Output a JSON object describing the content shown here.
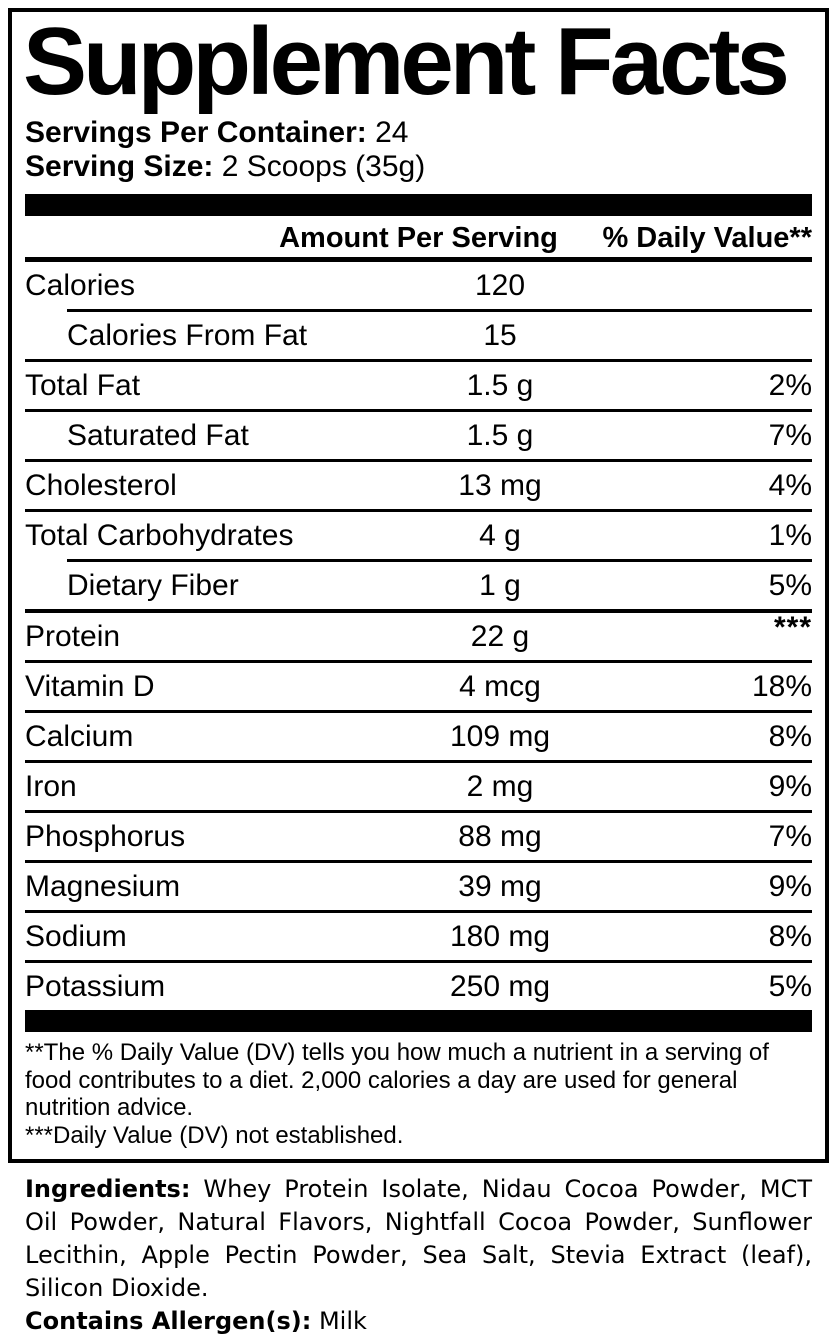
{
  "title": "Supplement Facts",
  "servings": {
    "label": "Servings Per Container:",
    "value": "24"
  },
  "serving_size": {
    "label": "Serving Size:",
    "value": "2 Scoops (35g)"
  },
  "table": {
    "col_amount": "Amount Per Serving",
    "col_dv": "% Daily Value**",
    "rows": [
      {
        "label": "Calories",
        "amount": "120",
        "dv": "",
        "indent": false,
        "divider": "none"
      },
      {
        "label": "Calories From Fat",
        "amount": "15",
        "dv": "",
        "indent": true,
        "divider": "indent"
      },
      {
        "label": "Total Fat",
        "amount": "1.5 g",
        "dv": "2%",
        "indent": false,
        "divider": "full"
      },
      {
        "label": "Saturated Fat",
        "amount": "1.5 g",
        "dv": "7%",
        "indent": true,
        "divider": "full"
      },
      {
        "label": "Cholesterol",
        "amount": "13 mg",
        "dv": "4%",
        "indent": false,
        "divider": "full"
      },
      {
        "label": "Total Carbohydrates",
        "amount": "4 g",
        "dv": "1%",
        "indent": false,
        "divider": "full"
      },
      {
        "label": "Dietary Fiber",
        "amount": "1 g",
        "dv": "5%",
        "indent": true,
        "divider": "indent"
      },
      {
        "label": "Protein",
        "amount": "22 g",
        "dv": "***",
        "indent": false,
        "divider": "medium",
        "dv_super": true
      },
      {
        "label": "Vitamin D",
        "amount": "4 mcg",
        "dv": "18%",
        "indent": false,
        "divider": "full"
      },
      {
        "label": "Calcium",
        "amount": "109 mg",
        "dv": "8%",
        "indent": false,
        "divider": "full"
      },
      {
        "label": "Iron",
        "amount": "2 mg",
        "dv": "9%",
        "indent": false,
        "divider": "full"
      },
      {
        "label": "Phosphorus",
        "amount": "88 mg",
        "dv": "7%",
        "indent": false,
        "divider": "full"
      },
      {
        "label": "Magnesium",
        "amount": "39 mg",
        "dv": "9%",
        "indent": false,
        "divider": "full"
      },
      {
        "label": "Sodium",
        "amount": "180 mg",
        "dv": "8%",
        "indent": false,
        "divider": "full"
      },
      {
        "label": "Potassium",
        "amount": "250 mg",
        "dv": "5%",
        "indent": false,
        "divider": "full"
      }
    ]
  },
  "footnotes": [
    "**The % Daily Value (DV) tells you how much a nutrient in a serving of food contributes to a diet. 2,000 calories a day are used for general nutrition advice.",
    "***Daily Value (DV) not established."
  ],
  "ingredients": {
    "label": "Ingredients:",
    "text": "Whey Protein Isolate, Nidau Cocoa Powder, MCT Oil Powder, Natural Flavors, Nightfall Cocoa Powder, Sunflower Lecithin, Apple Pectin Powder, Sea Salt, Stevia Extract (leaf), Silicon Dioxide."
  },
  "allergens": {
    "label": "Contains Allergen(s):",
    "value": "Milk"
  },
  "colors": {
    "ink": "#000000",
    "paper": "#ffffff"
  }
}
